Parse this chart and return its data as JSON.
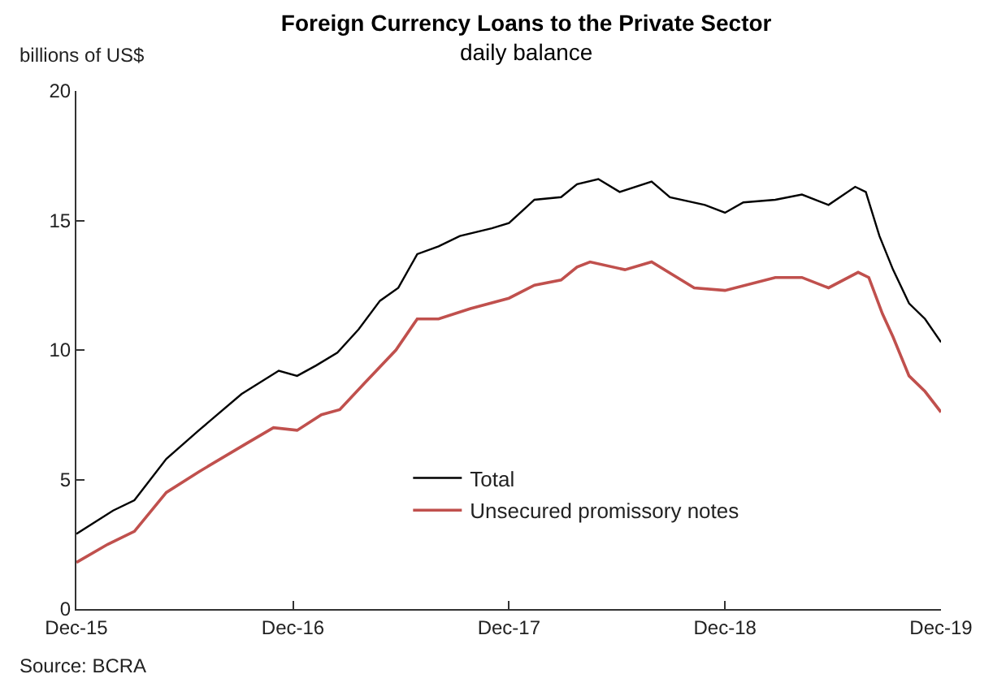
{
  "chart_data": {
    "type": "line",
    "title": "Foreign Currency Loans to the Private Sector",
    "subtitle": "daily balance",
    "ylabel": "billions of US$",
    "annotations": [
      "Source: BCRA"
    ],
    "xlim": [
      "2015-12-01",
      "2019-12-01"
    ],
    "xticks": [
      {
        "value": "2015-12-01",
        "label": "Dec-15"
      },
      {
        "value": "2016-12-01",
        "label": "Dec-16"
      },
      {
        "value": "2017-12-01",
        "label": "Dec-17"
      },
      {
        "value": "2018-12-01",
        "label": "Dec-18"
      },
      {
        "value": "2019-12-01",
        "label": "Dec-19"
      }
    ],
    "ylim": [
      0,
      20
    ],
    "yticks": [
      0,
      5,
      10,
      15,
      20
    ],
    "legend": "bottom",
    "marker": "none",
    "line_style": "solid",
    "series": [
      {
        "name": "Total",
        "color": "#000000",
        "x": [
          "2015-12-01",
          "2016-02-01",
          "2016-03-08",
          "2016-05-01",
          "2016-06-25",
          "2016-09-05",
          "2016-11-07",
          "2016-12-08",
          "2017-01-09",
          "2017-02-14",
          "2017-03-22",
          "2017-04-27",
          "2017-05-28",
          "2017-06-29",
          "2017-08-04",
          "2017-09-09",
          "2017-11-02",
          "2017-12-01",
          "2018-01-13",
          "2018-02-27",
          "2018-03-26",
          "2018-05-01",
          "2018-06-06",
          "2018-07-30",
          "2018-08-30",
          "2018-10-28",
          "2018-12-01",
          "2019-01-01",
          "2019-02-24",
          "2019-04-10",
          "2019-05-25",
          "2019-07-09",
          "2019-07-27",
          "2019-08-19",
          "2019-09-11",
          "2019-10-08",
          "2019-11-04",
          "2019-12-01"
        ],
        "values": [
          2.9,
          3.8,
          4.2,
          5.8,
          6.9,
          8.3,
          9.2,
          9.0,
          9.4,
          9.9,
          10.8,
          11.9,
          12.4,
          13.7,
          14.0,
          14.4,
          14.7,
          14.9,
          15.8,
          15.9,
          16.4,
          16.6,
          16.1,
          16.5,
          15.9,
          15.6,
          15.3,
          15.7,
          15.8,
          16.0,
          15.6,
          16.3,
          16.1,
          14.4,
          13.1,
          11.8,
          11.2,
          10.3
        ]
      },
      {
        "name": "Unsecured promissory notes",
        "color": "#c0504d",
        "x": [
          "2015-12-01",
          "2016-01-23",
          "2016-03-08",
          "2016-05-01",
          "2016-06-25",
          "2016-09-14",
          "2016-10-29",
          "2016-12-08",
          "2017-01-18",
          "2017-02-18",
          "2017-03-31",
          "2017-05-24",
          "2017-06-29",
          "2017-08-04",
          "2017-09-27",
          "2017-12-01",
          "2018-01-13",
          "2018-02-27",
          "2018-03-26",
          "2018-04-17",
          "2018-06-15",
          "2018-07-30",
          "2018-10-10",
          "2018-12-01",
          "2019-02-24",
          "2019-04-10",
          "2019-05-25",
          "2019-07-14",
          "2019-08-01",
          "2019-08-24",
          "2019-09-11",
          "2019-10-08",
          "2019-11-04",
          "2019-12-01"
        ],
        "values": [
          1.8,
          2.5,
          3.0,
          4.5,
          5.3,
          6.4,
          7.0,
          6.9,
          7.5,
          7.7,
          8.7,
          10.0,
          11.2,
          11.2,
          11.6,
          12.0,
          12.5,
          12.7,
          13.2,
          13.4,
          13.1,
          13.4,
          12.4,
          12.3,
          12.8,
          12.8,
          12.4,
          13.0,
          12.8,
          11.4,
          10.5,
          9.0,
          8.4,
          7.6
        ]
      }
    ]
  }
}
